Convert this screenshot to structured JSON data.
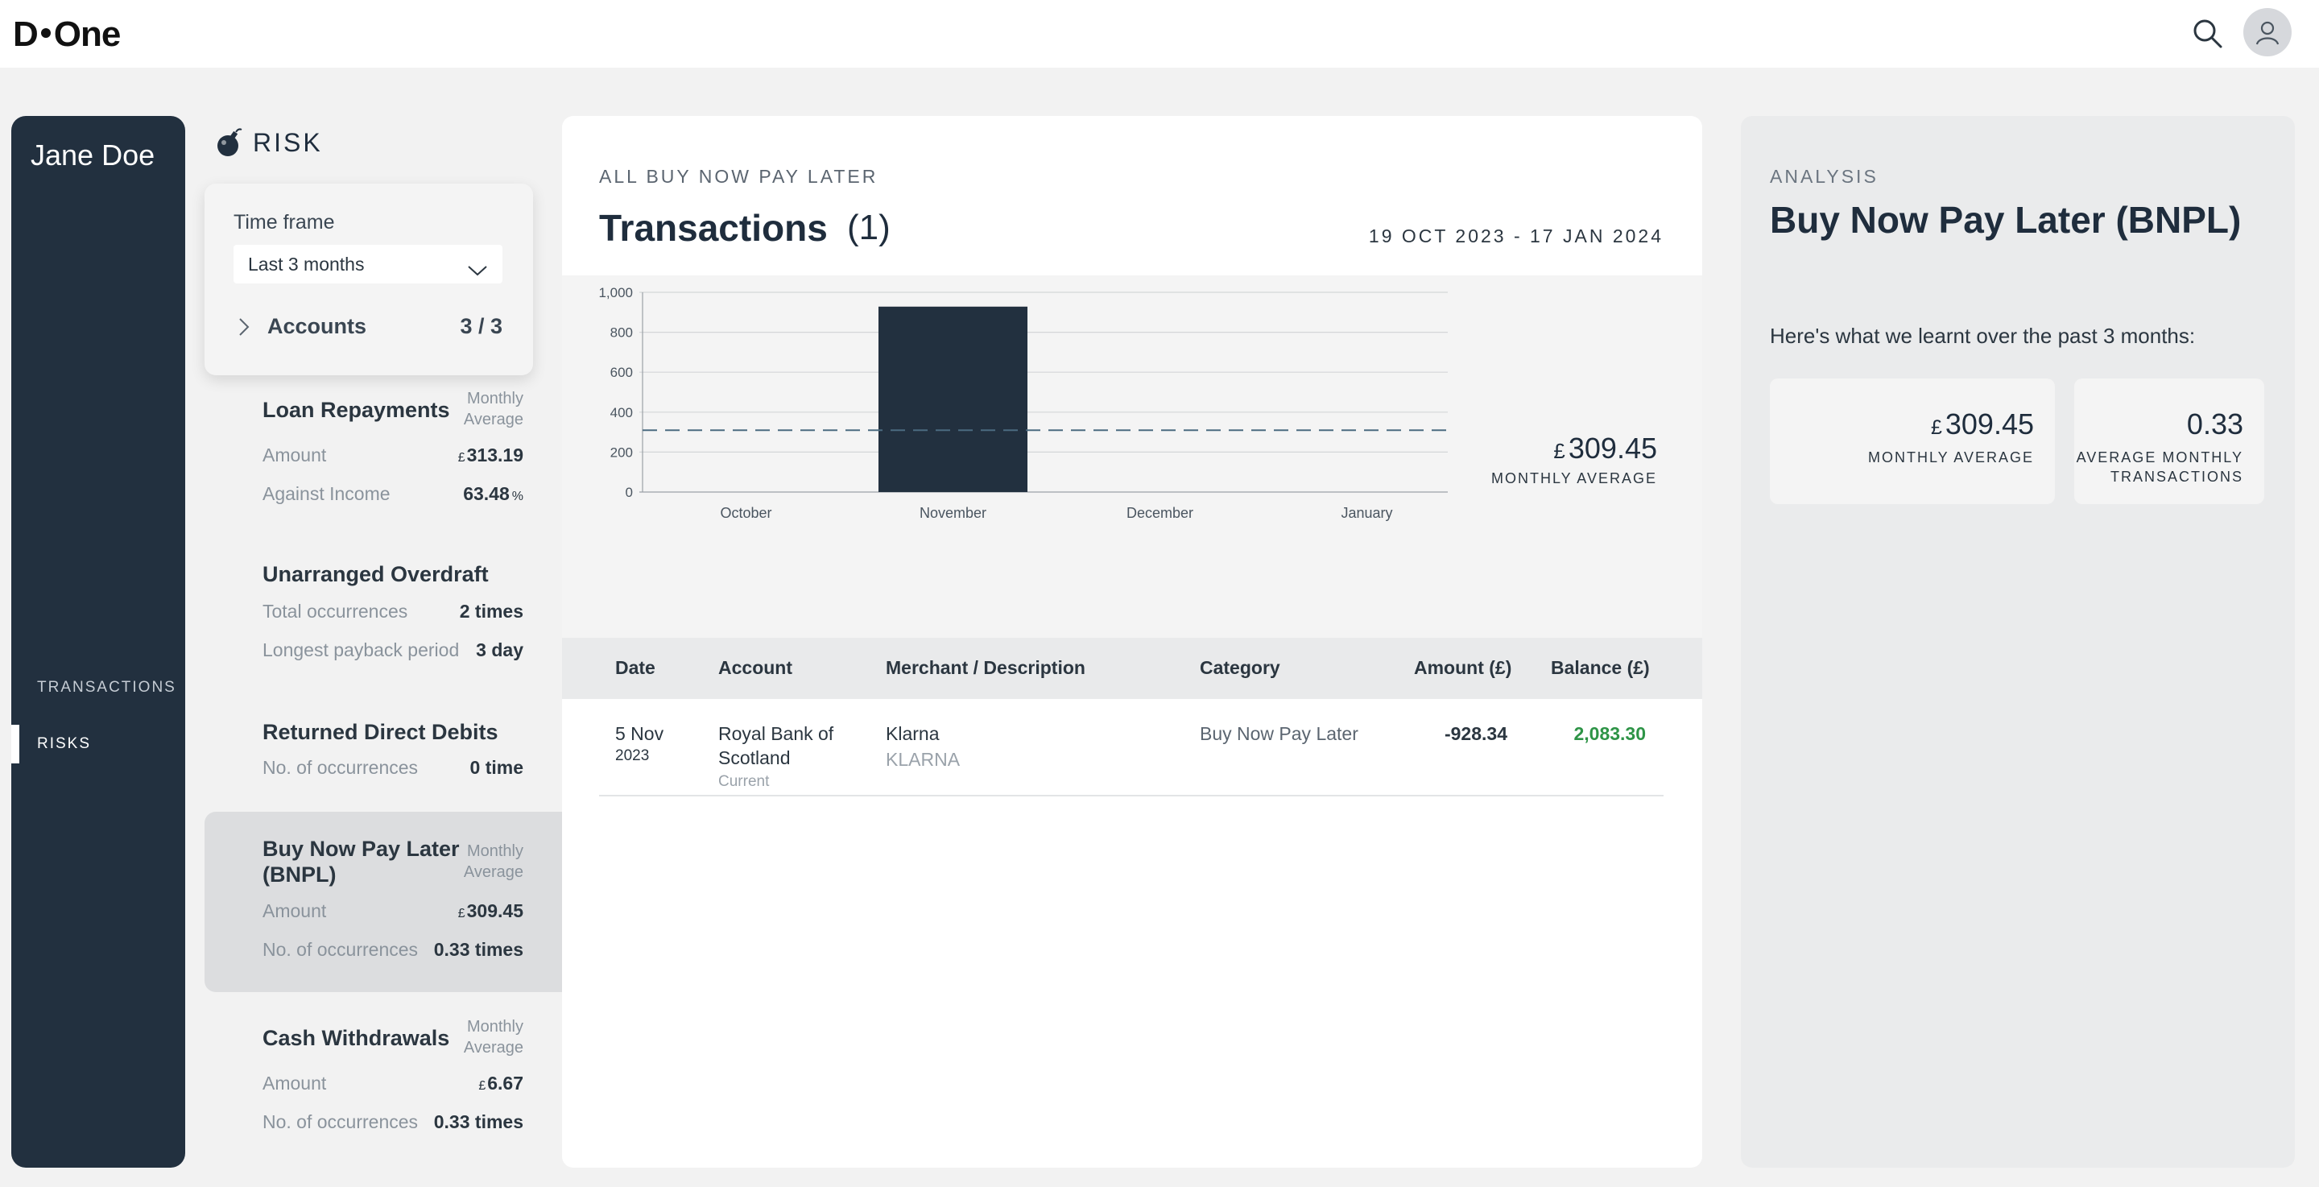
{
  "app": {
    "logo_left": "D",
    "logo_right": "One"
  },
  "user": {
    "name": "Jane Doe"
  },
  "nav": {
    "items": [
      {
        "label": "TRANSACTIONS"
      },
      {
        "label": "RISKS"
      }
    ]
  },
  "risk": {
    "header": "RISK",
    "timeframe": {
      "label": "Time frame",
      "selected": "Last 3 months",
      "accounts_label": "Accounts",
      "accounts_value": "3 / 3"
    },
    "blocks": [
      {
        "title": "Loan Repayments",
        "subtitle_1": "Monthly",
        "subtitle_2": "Average",
        "rows": [
          {
            "label": "Amount",
            "currency": "£",
            "value": "313.19"
          },
          {
            "label": "Against Income",
            "value": "63.48",
            "unit": "%"
          }
        ]
      },
      {
        "title": "Unarranged Overdraft",
        "rows": [
          {
            "label": "Total occurrences",
            "value": "2 times"
          },
          {
            "label": "Longest payback period",
            "value": "3 day"
          }
        ]
      },
      {
        "title": "Returned Direct Debits",
        "rows": [
          {
            "label": "No. of occurrences",
            "value": "0 time"
          }
        ]
      },
      {
        "title_1": "Buy Now Pay Later",
        "title_2": "(BNPL)",
        "subtitle_1": "Monthly",
        "subtitle_2": "Average",
        "rows": [
          {
            "label": "Amount",
            "currency": "£",
            "value": "309.45"
          },
          {
            "label": "No. of occurrences",
            "value": "0.33 times"
          }
        ]
      },
      {
        "title": "Cash Withdrawals",
        "subtitle_1": "Monthly",
        "subtitle_2": "Average",
        "rows": [
          {
            "label": "Amount",
            "currency": "£",
            "value": "6.67"
          },
          {
            "label": "No. of occurrences",
            "value": "0.33 times"
          }
        ]
      }
    ]
  },
  "main": {
    "eyebrow": "ALL BUY NOW PAY LATER",
    "title": "Transactions",
    "count": "(1)",
    "date_range": "19 OCT 2023 - 17 JAN 2024",
    "monthly_average": {
      "currency": "£",
      "value": "309.45",
      "label": "MONTHLY AVERAGE"
    },
    "table": {
      "headers": [
        "Date",
        "Account",
        "Merchant / Description",
        "Category",
        "Amount (£)",
        "Balance (£)"
      ],
      "rows": [
        {
          "date_day": "5 Nov",
          "date_year": "2023",
          "account_1": "Royal Bank of",
          "account_2": "Scotland",
          "account_type": "Current",
          "merchant": "Klarna",
          "description": "KLARNA",
          "category": "Buy Now Pay Later",
          "amount": "-928.34",
          "balance": "2,083.30"
        }
      ]
    }
  },
  "chart_data": {
    "type": "bar",
    "categories": [
      "October",
      "November",
      "December",
      "January"
    ],
    "values": [
      0,
      928.34,
      0,
      0
    ],
    "ylim": [
      0,
      1000
    ],
    "yticks": [
      0,
      200,
      400,
      600,
      800,
      1000
    ],
    "ytick_labels": [
      "0",
      "200",
      "400",
      "600",
      "800",
      "1,000"
    ],
    "reference_line": {
      "value": 309.45,
      "style": "dashed"
    },
    "grid": true,
    "colors": {
      "bar": "#22303f",
      "reference": "#4b6b80"
    }
  },
  "analysis": {
    "eyebrow": "ANALYSIS",
    "title": "Buy Now Pay Later (BNPL)",
    "intro": "Here's what we learnt over the past 3 months:",
    "stats": [
      {
        "currency": "£",
        "value": "309.45",
        "label_1": "MONTHLY AVERAGE"
      },
      {
        "value": "0.33",
        "label_1": "AVERAGE MONTHLY",
        "label_2": "TRANSACTIONS"
      }
    ]
  }
}
